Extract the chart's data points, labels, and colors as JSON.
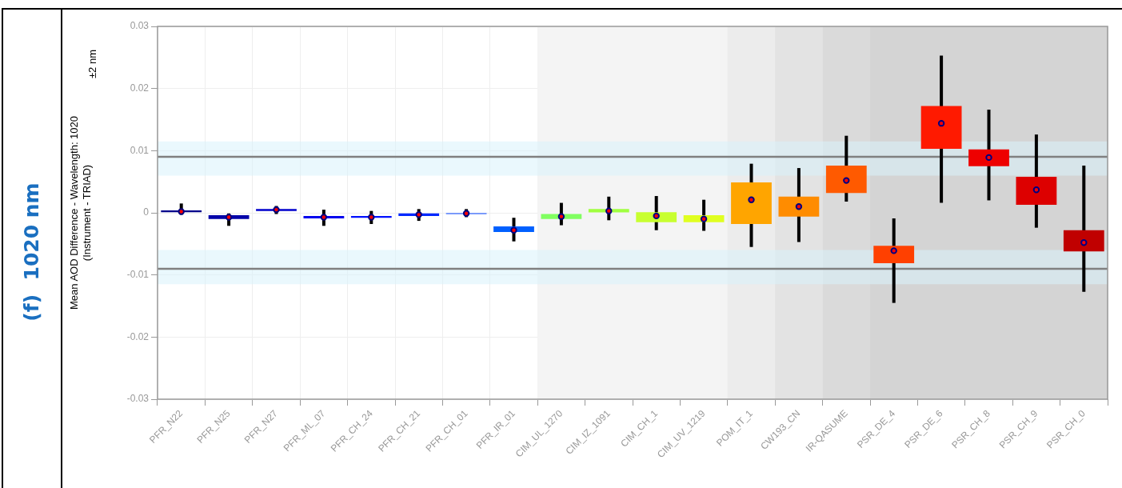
{
  "chart_data": {
    "type": "bar",
    "title": "(f)  1020 nm",
    "ylabel": "Mean AOD Difference - Wavelength: 1020\n(Instrument - TRIAD)",
    "annotations": [
      "±2 nm"
    ],
    "categories": [
      "PFR_N22",
      "PFR_N25",
      "PFR_N27",
      "PFR_ML_07",
      "PFR_CH_24",
      "PFR_CH_21",
      "PFR_CH_01",
      "PFR_IR_01",
      "CIM_UL_1270",
      "CIM_IZ_1091",
      "CIM_CH_1",
      "CIM_UV_1219",
      "POM_IT_1",
      "CW193_CN",
      "IR-QASUME",
      "PSR_DE_4",
      "PSR_DE_6",
      "PSR_CH_8",
      "PSR_CH_9",
      "PSR_CH_0"
    ],
    "series": [
      {
        "type": "bar",
        "colors": [
          "#00008b",
          "#0000a8",
          "#0000cd",
          "#0000ee",
          "#0010ff",
          "#0028ff",
          "#0040ff",
          "#0060ff",
          "#80ff60",
          "#a0ff40",
          "#c8ff30",
          "#e0ff20",
          "#ffa500",
          "#ff8c00",
          "#ff5a00",
          "#ff4000",
          "#ff1a00",
          "#ee0000",
          "#dd0000",
          "#c00000"
        ],
        "base": [
          0.0001,
          -0.001,
          0.0003,
          -0.0009,
          -0.0008,
          -0.0005,
          -0.0002,
          -0.0031,
          -0.001,
          0.0,
          -0.0015,
          -0.0015,
          -0.0018,
          -0.0006,
          0.0032,
          -0.0081,
          0.0103,
          0.0075,
          0.0013,
          -0.0062
        ],
        "values": [
          0.0003,
          0.0006,
          0.0003,
          0.0004,
          0.0003,
          0.0004,
          0.0002,
          0.0009,
          0.0008,
          0.0006,
          0.0016,
          0.0011,
          0.0067,
          0.0032,
          0.0044,
          0.0028,
          0.0069,
          0.0027,
          0.0045,
          0.0034
        ]
      },
      {
        "type": "scatter",
        "color": "#ff0000",
        "x": [
          "PFR_N22",
          "PFR_N25",
          "PFR_N27",
          "PFR_ML_07",
          "PFR_CH_24",
          "PFR_CH_21",
          "PFR_CH_01",
          "PFR_IR_01",
          "CIM_UL_1270",
          "CIM_IZ_1091",
          "CIM_CH_1",
          "CIM_UV_1219",
          "POM_IT_1",
          "CW193_CN",
          "IR-QASUME",
          "PSR_DE_4",
          "PSR_DE_6",
          "PSR_CH_8",
          "PSR_CH_9",
          "PSR_CH_0"
        ],
        "values": [
          0.0002,
          -0.0007,
          0.0005,
          -0.0007,
          -0.0007,
          -0.0003,
          -0.0001,
          -0.0028,
          -0.0006,
          0.0003,
          -0.0005,
          -0.001,
          0.0021,
          0.001,
          0.0052,
          -0.0061,
          0.0144,
          0.0089,
          0.0037,
          -0.0048
        ],
        "errors": [
          [
            -0.0003,
            0.0015
          ],
          [
            -0.0021,
            -0.0001
          ],
          [
            -0.0002,
            0.0011
          ],
          [
            -0.0021,
            0.0005
          ],
          [
            -0.0018,
            0.0003
          ],
          [
            -0.0013,
            0.0006
          ],
          [
            -0.0007,
            0.0006
          ],
          [
            -0.0046,
            -0.0008
          ],
          [
            -0.002,
            0.0016
          ],
          [
            -0.0012,
            0.0026
          ],
          [
            -0.0028,
            0.0027
          ],
          [
            -0.0029,
            0.0021
          ],
          [
            -0.0055,
            0.0079
          ],
          [
            -0.0047,
            0.0072
          ],
          [
            0.0018,
            0.0124
          ],
          [
            -0.0145,
            -0.0009
          ],
          [
            0.0016,
            0.0253
          ],
          [
            0.002,
            0.0166
          ],
          [
            -0.0024,
            0.0126
          ],
          [
            -0.0127,
            0.0076
          ]
        ]
      }
    ],
    "marker": "circle",
    "ylim": [
      -0.03,
      0.03
    ],
    "yticks": [
      -0.03,
      -0.02,
      -0.01,
      0,
      0.01,
      0.02,
      0.03
    ],
    "grid": true,
    "ref_lines": [
      {
        "axis": "y",
        "value": 0.009,
        "color": "#808080"
      },
      {
        "axis": "y",
        "value": -0.009,
        "color": "#808080"
      }
    ],
    "bands": [
      {
        "axis": "x",
        "from": "CIM_UL_1270",
        "to": "CIM_UV_1219",
        "color": "#f4f4f4"
      },
      {
        "axis": "x",
        "from": "POM_IT_1",
        "to": "POM_IT_1",
        "color": "#ececec"
      },
      {
        "axis": "x",
        "from": "CW193_CN",
        "to": "CW193_CN",
        "color": "#e3e3e3"
      },
      {
        "axis": "x",
        "from": "IR-QASUME",
        "to": "IR-QASUME",
        "color": "#dadada"
      },
      {
        "axis": "x",
        "from": "PSR_DE_4",
        "to": "PSR_CH_0",
        "color": "#d4d4d4"
      },
      {
        "axis": "y",
        "from": 0.006,
        "to": 0.0115,
        "color": "#d8f2fb"
      },
      {
        "axis": "y",
        "from": -0.0115,
        "to": -0.006,
        "color": "#d8f2fb"
      }
    ]
  }
}
